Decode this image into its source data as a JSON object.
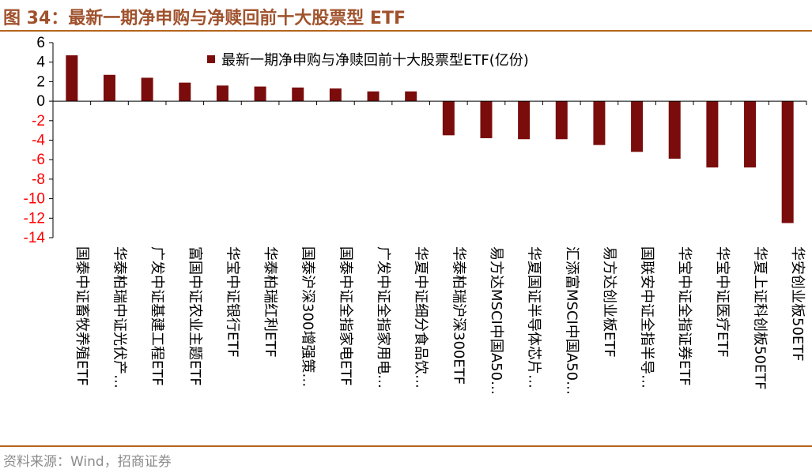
{
  "figure": {
    "title": "图 34：最新一期净申购与净赎回前十大股票型 ETF",
    "source": "资料来源：Wind，招商证券"
  },
  "colors": {
    "bar": "#7b0c0c",
    "title": "#a0522d",
    "rule": "#b5651d",
    "axis": "#000000",
    "tick_label": "#000000",
    "negative_tick_label": "#ff0000",
    "source_text": "#8c8c8c"
  },
  "chart_data": {
    "type": "bar",
    "title": "",
    "xlabel": "",
    "ylabel": "",
    "ylim": [
      -14,
      6
    ],
    "yticks": [
      6,
      4,
      2,
      0,
      -2,
      -4,
      -6,
      -8,
      -10,
      -12,
      -14
    ],
    "grid": false,
    "legend_position": "top-center",
    "categories": [
      "国泰中证畜牧养殖ETF",
      "华泰柏瑞中证光伏产…",
      "广发中证基建工程ETF",
      "富国中证农业主题ETF",
      "华宝中证银行ETF",
      "华泰柏瑞红利ETF",
      "国泰沪深300增强策…",
      "国泰中证全指家电ETF",
      "广发中证全指家用电…",
      "华夏中证细分食品饮…",
      "华泰柏瑞沪深300ETF",
      "易方达MSCI中国A50…",
      "华夏国证半导体芯片…",
      "汇添富MSCI中国A50…",
      "易方达创业板ETF",
      "国联安中证全指半导…",
      "华宝中证全指证券ETF",
      "华宝中证医疗ETF",
      "华夏上证科创板50ETF",
      "华安创业板50ETF"
    ],
    "series": [
      {
        "name": "最新一期净申购与净赎回前十大股票型ETF(亿份)",
        "values": [
          4.7,
          2.7,
          2.4,
          1.9,
          1.6,
          1.5,
          1.4,
          1.3,
          1.0,
          1.0,
          -3.5,
          -3.8,
          -3.9,
          -3.9,
          -4.5,
          -5.2,
          -5.9,
          -6.8,
          -6.8,
          -12.5
        ]
      }
    ]
  }
}
